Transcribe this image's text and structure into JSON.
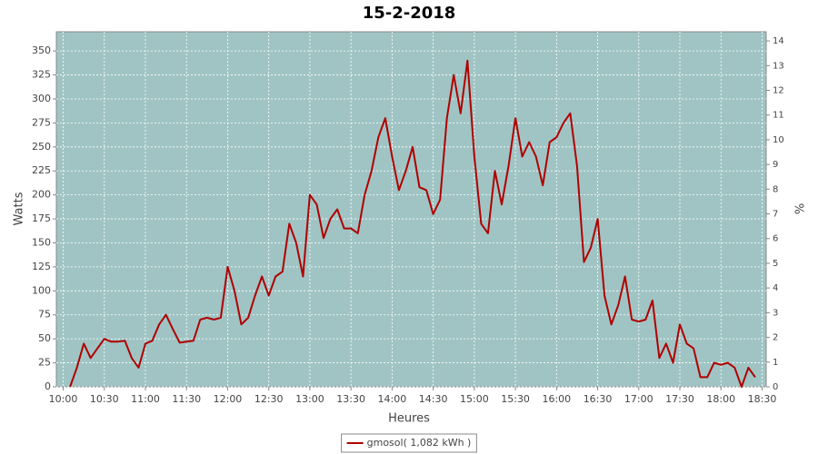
{
  "chart_data": {
    "type": "line",
    "title": "15-2-2018",
    "x_label": "Heures",
    "y_label": "Watts",
    "y2_label": "%",
    "x": [
      605,
      610,
      615,
      620,
      625,
      630,
      635,
      640,
      645,
      650,
      655,
      660,
      665,
      670,
      675,
      680,
      685,
      690,
      695,
      700,
      705,
      710,
      715,
      720,
      725,
      730,
      735,
      740,
      745,
      750,
      755,
      760,
      765,
      770,
      775,
      780,
      785,
      790,
      795,
      800,
      805,
      810,
      815,
      820,
      825,
      830,
      835,
      840,
      845,
      850,
      855,
      860,
      865,
      870,
      875,
      880,
      885,
      890,
      895,
      900,
      905,
      910,
      915,
      920,
      925,
      930,
      935,
      940,
      945,
      950,
      955,
      960,
      965,
      970,
      975,
      980,
      985,
      990,
      995,
      1000,
      1005,
      1010,
      1015,
      1020,
      1025,
      1030,
      1035,
      1040,
      1045,
      1050,
      1055,
      1060,
      1065,
      1070,
      1075,
      1080,
      1085,
      1090,
      1095,
      1100,
      1105
    ],
    "series": [
      {
        "name": "gmosol( 1,082 kWh )",
        "color": "#b00000",
        "values": [
          0,
          20,
          45,
          30,
          40,
          50,
          47,
          47,
          48,
          30,
          20,
          45,
          48,
          65,
          75,
          60,
          46,
          47,
          48,
          70,
          72,
          70,
          72,
          125,
          100,
          65,
          72,
          95,
          115,
          95,
          115,
          120,
          170,
          150,
          115,
          200,
          190,
          155,
          175,
          185,
          165,
          165,
          160,
          200,
          225,
          260,
          280,
          240,
          205,
          225,
          250,
          208,
          205,
          180,
          195,
          280,
          325,
          285,
          340,
          240,
          170,
          160,
          225,
          190,
          230,
          280,
          240,
          255,
          240,
          210,
          255,
          260,
          275,
          285,
          230,
          130,
          145,
          175,
          95,
          65,
          85,
          115,
          70,
          68,
          70,
          90,
          30,
          45,
          25,
          65,
          45,
          40,
          10,
          10,
          25,
          23,
          25,
          20,
          0,
          20,
          10
        ]
      }
    ],
    "xlim": [
      595,
      1113
    ],
    "xticks": [
      {
        "value": 600,
        "label": "10:00"
      },
      {
        "value": 630,
        "label": "10:30"
      },
      {
        "value": 660,
        "label": "11:00"
      },
      {
        "value": 690,
        "label": "11:30"
      },
      {
        "value": 720,
        "label": "12:00"
      },
      {
        "value": 750,
        "label": "12:30"
      },
      {
        "value": 780,
        "label": "13:00"
      },
      {
        "value": 810,
        "label": "13:30"
      },
      {
        "value": 840,
        "label": "14:00"
      },
      {
        "value": 870,
        "label": "14:30"
      },
      {
        "value": 900,
        "label": "15:00"
      },
      {
        "value": 930,
        "label": "15:30"
      },
      {
        "value": 960,
        "label": "16:00"
      },
      {
        "value": 990,
        "label": "16:30"
      },
      {
        "value": 1020,
        "label": "17:00"
      },
      {
        "value": 1050,
        "label": "17:30"
      },
      {
        "value": 1080,
        "label": "18:00"
      },
      {
        "value": 1110,
        "label": "18:30"
      }
    ],
    "ylim": [
      0,
      370
    ],
    "yticks": [
      0,
      25,
      50,
      75,
      100,
      125,
      150,
      175,
      200,
      225,
      250,
      275,
      300,
      325,
      350
    ],
    "y2lim": [
      0,
      14.37
    ],
    "y2ticks": [
      0,
      1,
      2,
      3,
      4,
      5,
      6,
      7,
      8,
      9,
      10,
      11,
      12,
      13,
      14
    ],
    "grid": true,
    "plot_background": "#a0c4c4",
    "legend": "bottom"
  }
}
